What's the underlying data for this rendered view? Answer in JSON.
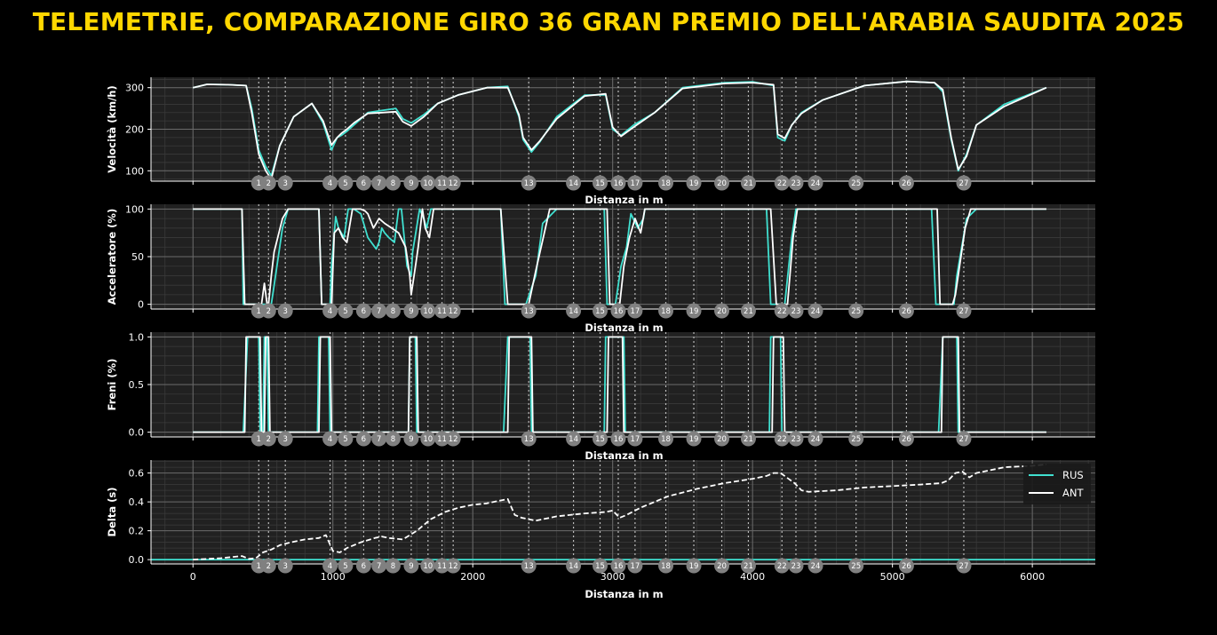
{
  "title": "TELEMETRIE, COMPARAZIONE GIRO 36 GRAN PREMIO DELL'ARABIA SAUDITA 2025",
  "colors": {
    "title": "#ffd700",
    "RUS": "#40e0d0",
    "ANT": "#ffffff",
    "corner_marker": "#808080",
    "panel_bg": "#212121"
  },
  "chart_data": [
    {
      "type": "line",
      "ylabel": "Velocità (km/h)",
      "xlabel": "Distanza in m",
      "xlim": [
        -300,
        6450
      ],
      "ylim": [
        75,
        325
      ],
      "yticks": [
        100,
        200,
        300
      ],
      "yticklabels": [
        "100",
        "200",
        "300"
      ],
      "grid": true,
      "series": [
        {
          "name": "RUS",
          "x": [
            0,
            100,
            250,
            380,
            420,
            470,
            520,
            560,
            620,
            720,
            850,
            930,
            990,
            1030,
            1060,
            1100,
            1150,
            1250,
            1350,
            1450,
            1500,
            1560,
            1650,
            1750,
            1900,
            2100,
            2250,
            2330,
            2360,
            2420,
            2480,
            2600,
            2800,
            2950,
            3000,
            3060,
            3150,
            3300,
            3500,
            3800,
            4000,
            4150,
            4180,
            4230,
            4280,
            4350,
            4500,
            4800,
            5100,
            5300,
            5360,
            5420,
            5470,
            5530,
            5600,
            5800,
            6100
          ],
          "values": [
            300,
            308,
            307,
            305,
            250,
            150,
            110,
            88,
            160,
            230,
            262,
            215,
            150,
            180,
            185,
            195,
            210,
            240,
            245,
            250,
            225,
            215,
            235,
            262,
            283,
            300,
            303,
            230,
            175,
            145,
            170,
            230,
            282,
            283,
            200,
            185,
            210,
            240,
            300,
            312,
            314,
            305,
            180,
            172,
            210,
            240,
            270,
            305,
            315,
            312,
            290,
            175,
            100,
            140,
            210,
            260,
            300
          ]
        },
        {
          "name": "ANT",
          "x": [
            0,
            100,
            250,
            380,
            420,
            470,
            520,
            560,
            620,
            720,
            850,
            930,
            990,
            1030,
            1060,
            1100,
            1150,
            1250,
            1350,
            1450,
            1500,
            1560,
            1650,
            1750,
            1900,
            2100,
            2250,
            2330,
            2360,
            2420,
            2480,
            2600,
            2800,
            2950,
            3000,
            3060,
            3150,
            3300,
            3500,
            3800,
            4000,
            4150,
            4180,
            4230,
            4280,
            4350,
            4500,
            4800,
            5100,
            5300,
            5360,
            5420,
            5470,
            5530,
            5600,
            5800,
            6100
          ],
          "values": [
            300,
            308,
            307,
            305,
            240,
            140,
            100,
            80,
            160,
            230,
            262,
            220,
            162,
            180,
            190,
            200,
            215,
            238,
            240,
            242,
            218,
            208,
            230,
            262,
            283,
            300,
            300,
            235,
            180,
            150,
            172,
            225,
            280,
            285,
            205,
            183,
            205,
            240,
            298,
            310,
            312,
            307,
            188,
            178,
            210,
            238,
            270,
            305,
            315,
            312,
            295,
            180,
            103,
            135,
            210,
            255,
            300
          ]
        }
      ],
      "corners": [
        "1",
        "2",
        "3",
        "4",
        "5",
        "6",
        "7",
        "8",
        "9",
        "10",
        "11",
        "12",
        "13",
        "14",
        "15",
        "16",
        "17",
        "18",
        "19",
        "20",
        "21",
        "22",
        "23",
        "24",
        "25",
        "26",
        "27"
      ],
      "corner_x": [
        470,
        540,
        660,
        980,
        1090,
        1220,
        1330,
        1430,
        1560,
        1680,
        1780,
        1860,
        2400,
        2720,
        2910,
        3040,
        3160,
        3380,
        3580,
        3780,
        3970,
        4210,
        4310,
        4450,
        4740,
        5100,
        5510
      ]
    },
    {
      "type": "line",
      "ylabel": "Acceleratore (%)",
      "xlabel": "Distanza in m",
      "xlim": [
        -300,
        6450
      ],
      "ylim": [
        -5,
        105
      ],
      "yticks": [
        0,
        50,
        100
      ],
      "yticklabels": [
        "0",
        "50",
        "100"
      ],
      "grid": true,
      "series": [
        {
          "name": "RUS",
          "x": [
            0,
            350,
            360,
            440,
            450,
            500,
            520,
            560,
            580,
            640,
            680,
            900,
            920,
            980,
            990,
            1020,
            1040,
            1080,
            1110,
            1150,
            1170,
            1200,
            1250,
            1300,
            1310,
            1330,
            1350,
            1370,
            1400,
            1440,
            1470,
            1490,
            1530,
            1560,
            1570,
            1620,
            1650,
            1670,
            1700,
            1720,
            2200,
            2230,
            2320,
            2330,
            2380,
            2450,
            2500,
            2600,
            2940,
            2960,
            3010,
            3020,
            3060,
            3100,
            3130,
            3180,
            3220,
            3230,
            3260,
            4100,
            4130,
            4180,
            4190,
            4230,
            4280,
            4310,
            5280,
            5310,
            5420,
            5440,
            5460,
            5530,
            5600,
            6100
          ],
          "values": [
            100,
            100,
            0,
            0,
            0,
            0,
            0,
            0,
            20,
            80,
            100,
            100,
            0,
            0,
            40,
            92,
            80,
            70,
            100,
            100,
            98,
            95,
            70,
            60,
            58,
            65,
            80,
            75,
            70,
            65,
            100,
            100,
            40,
            30,
            55,
            100,
            90,
            80,
            100,
            100,
            100,
            0,
            0,
            0,
            0,
            30,
            85,
            100,
            100,
            0,
            0,
            0,
            40,
            60,
            95,
            80,
            90,
            100,
            100,
            100,
            0,
            0,
            0,
            0,
            70,
            100,
            100,
            0,
            0,
            0,
            30,
            90,
            100,
            100
          ]
        },
        {
          "name": "ANT",
          "x": [
            0,
            350,
            370,
            450,
            470,
            490,
            510,
            530,
            540,
            560,
            580,
            640,
            680,
            900,
            920,
            990,
            1010,
            1040,
            1070,
            1100,
            1140,
            1170,
            1200,
            1230,
            1250,
            1290,
            1330,
            1370,
            1420,
            1470,
            1520,
            1550,
            1560,
            1580,
            1610,
            1640,
            1660,
            1690,
            1720,
            2200,
            2250,
            2330,
            2350,
            2400,
            2450,
            2550,
            2960,
            2980,
            3040,
            3050,
            3080,
            3120,
            3160,
            3200,
            3230,
            4130,
            4170,
            4230,
            4250,
            4290,
            4320,
            5320,
            5340,
            5430,
            5450,
            5480,
            5520,
            5560,
            5600,
            6100
          ],
          "values": [
            100,
            100,
            0,
            0,
            0,
            0,
            22,
            0,
            0,
            30,
            55,
            90,
            100,
            100,
            0,
            0,
            75,
            80,
            70,
            65,
            100,
            100,
            100,
            98,
            95,
            80,
            90,
            85,
            80,
            75,
            60,
            30,
            10,
            30,
            60,
            100,
            80,
            70,
            100,
            100,
            0,
            0,
            0,
            0,
            35,
            100,
            100,
            0,
            0,
            0,
            40,
            70,
            90,
            75,
            100,
            100,
            0,
            0,
            0,
            70,
            100,
            100,
            0,
            0,
            10,
            40,
            80,
            100,
            100,
            100
          ]
        }
      ],
      "corners": [
        "1",
        "2",
        "3",
        "4",
        "5",
        "6",
        "7",
        "8",
        "9",
        "10",
        "11",
        "12",
        "13",
        "14",
        "15",
        "16",
        "17",
        "18",
        "19",
        "20",
        "21",
        "22",
        "23",
        "24",
        "25",
        "26",
        "27"
      ],
      "corner_x": [
        470,
        540,
        660,
        980,
        1090,
        1220,
        1330,
        1430,
        1560,
        1680,
        1780,
        1860,
        2400,
        2720,
        2910,
        3040,
        3160,
        3380,
        3580,
        3780,
        3970,
        4210,
        4310,
        4450,
        4740,
        5100,
        5510
      ]
    },
    {
      "type": "line",
      "ylabel": "Freni (%)",
      "xlabel": "Distanza in m",
      "xlim": [
        -300,
        6450
      ],
      "ylim": [
        -0.05,
        1.05
      ],
      "yticks": [
        0,
        0.5,
        1
      ],
      "yticklabels": [
        "0.0",
        "0.5",
        "1.0"
      ],
      "grid": true,
      "series": [
        {
          "name": "RUS",
          "x": [
            0,
            360,
            390,
            470,
            480,
            500,
            510,
            530,
            540,
            890,
            900,
            970,
            980,
            1540,
            1550,
            1590,
            1600,
            2220,
            2250,
            2410,
            2420,
            2940,
            2950,
            3080,
            3090,
            4120,
            4130,
            4200,
            4210,
            5330,
            5360,
            5460,
            5470,
            6100
          ],
          "values": [
            0,
            0,
            1,
            1,
            0,
            0,
            1,
            1,
            0,
            0,
            1,
            1,
            0,
            0,
            1,
            1,
            0,
            0,
            1,
            1,
            0,
            0,
            1,
            1,
            0,
            0,
            1,
            1,
            0,
            0,
            1,
            1,
            0,
            0
          ]
        },
        {
          "name": "ANT",
          "x": [
            0,
            370,
            380,
            480,
            490,
            510,
            520,
            540,
            550,
            900,
            910,
            980,
            990,
            1540,
            1550,
            1600,
            1610,
            2250,
            2260,
            2420,
            2430,
            2960,
            2970,
            3070,
            3080,
            4140,
            4150,
            4220,
            4230,
            5350,
            5360,
            5470,
            5480,
            6100
          ],
          "values": [
            0,
            0,
            1,
            1,
            0,
            0,
            1,
            1,
            0,
            0,
            1,
            1,
            0,
            0,
            1,
            1,
            0,
            0,
            1,
            1,
            0,
            0,
            1,
            1,
            0,
            0,
            1,
            1,
            0,
            0,
            1,
            1,
            0,
            0
          ]
        }
      ],
      "corners": [
        "1",
        "2",
        "3",
        "4",
        "5",
        "6",
        "7",
        "8",
        "9",
        "10",
        "11",
        "12",
        "13",
        "14",
        "15",
        "16",
        "17",
        "18",
        "19",
        "20",
        "21",
        "22",
        "23",
        "24",
        "25",
        "26",
        "27"
      ],
      "corner_x": [
        470,
        540,
        660,
        980,
        1090,
        1220,
        1330,
        1430,
        1560,
        1680,
        1780,
        1860,
        2400,
        2720,
        2910,
        3040,
        3160,
        3380,
        3580,
        3780,
        3970,
        4210,
        4310,
        4450,
        4740,
        5100,
        5510
      ]
    },
    {
      "type": "line",
      "ylabel": "Delta (s)",
      "xlabel": "Distanza in m",
      "xlim": [
        -300,
        6450
      ],
      "ylim": [
        -0.03,
        0.69
      ],
      "yticks": [
        0,
        0.2,
        0.4,
        0.6
      ],
      "yticklabels": [
        "0.0",
        "0.2",
        "0.4",
        "0.6"
      ],
      "xticks": [
        0,
        1000,
        2000,
        3000,
        4000,
        5000,
        6000
      ],
      "xticklabels": [
        "0",
        "1000",
        "2000",
        "3000",
        "4000",
        "5000",
        "6000"
      ],
      "grid": true,
      "legend": "top-right",
      "series": [
        {
          "name": "RUS",
          "x": [
            -300,
            6450
          ],
          "values": [
            0,
            0
          ]
        },
        {
          "name": "ANT",
          "x": [
            0,
            200,
            350,
            400,
            450,
            500,
            560,
            620,
            700,
            800,
            900,
            950,
            1000,
            1050,
            1100,
            1200,
            1300,
            1350,
            1400,
            1500,
            1600,
            1700,
            1800,
            1900,
            2000,
            2100,
            2200,
            2250,
            2300,
            2350,
            2450,
            2600,
            2800,
            2950,
            3000,
            3050,
            3100,
            3200,
            3400,
            3600,
            3800,
            4000,
            4100,
            4150,
            4200,
            4300,
            4350,
            4400,
            4600,
            4800,
            5000,
            5200,
            5350,
            5400,
            5450,
            5500,
            5550,
            5600,
            5700,
            5800,
            6000,
            6100
          ],
          "values": [
            0,
            0.01,
            0.025,
            0.005,
            0.01,
            0.05,
            0.07,
            0.1,
            0.12,
            0.14,
            0.15,
            0.17,
            0.06,
            0.05,
            0.08,
            0.12,
            0.15,
            0.16,
            0.15,
            0.14,
            0.2,
            0.28,
            0.33,
            0.36,
            0.38,
            0.39,
            0.41,
            0.42,
            0.31,
            0.29,
            0.27,
            0.3,
            0.32,
            0.33,
            0.34,
            0.29,
            0.31,
            0.36,
            0.44,
            0.49,
            0.53,
            0.56,
            0.58,
            0.6,
            0.6,
            0.53,
            0.48,
            0.47,
            0.48,
            0.5,
            0.51,
            0.52,
            0.53,
            0.55,
            0.6,
            0.61,
            0.57,
            0.6,
            0.62,
            0.64,
            0.65,
            0.66
          ]
        }
      ],
      "corners": [
        "1",
        "2",
        "3",
        "4",
        "5",
        "6",
        "7",
        "8",
        "9",
        "10",
        "11",
        "12",
        "13",
        "14",
        "15",
        "16",
        "17",
        "18",
        "19",
        "20",
        "21",
        "22",
        "23",
        "24",
        "25",
        "26",
        "27"
      ],
      "corner_x": [
        470,
        540,
        660,
        980,
        1090,
        1220,
        1330,
        1430,
        1560,
        1680,
        1780,
        1860,
        2400,
        2720,
        2910,
        3040,
        3160,
        3380,
        3580,
        3780,
        3970,
        4210,
        4310,
        4450,
        4740,
        5100,
        5510
      ]
    }
  ]
}
